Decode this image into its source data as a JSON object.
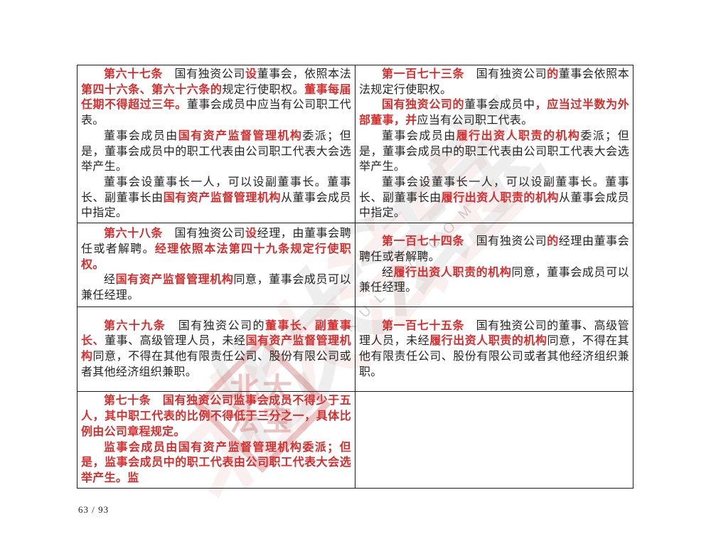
{
  "page": {
    "number_label": "63 / 93"
  },
  "colors": {
    "emphasis_red": "#d92c2c",
    "text_black": "#242424",
    "border": "#1c1c1c",
    "watermark_gray": "#8f8f8f",
    "watermark_pink": "#d07878"
  },
  "watermark": {
    "brand_cursive": "北大法宝",
    "brand_url": "PKULAW.COM",
    "seal_line1": "北大",
    "seal_line2": "法宝"
  },
  "table": {
    "rows": [
      {
        "cells": [
          {
            "paragraphs": [
              [
                {
                  "t": "第六十七条",
                  "red": true
                },
                {
                  "t": "　国有独资公司",
                  "red": false
                },
                {
                  "t": "设",
                  "red": true
                },
                {
                  "t": "董事会，依照本法",
                  "red": false
                },
                {
                  "t": "第四十六条、第六十六条的",
                  "red": true
                },
                {
                  "t": "规定行使职权。",
                  "red": false
                },
                {
                  "t": "董事每届任期不得超过三年。",
                  "red": true
                },
                {
                  "t": "董事会成员中应当有公司职工代表。",
                  "red": false
                }
              ],
              [
                {
                  "t": "董事会成员由",
                  "red": false
                },
                {
                  "t": "国有资产监督管理机构",
                  "red": true
                },
                {
                  "t": "委派；但是，董事会成员中的职工代表由公司职工代表大会选举产生。",
                  "red": false
                }
              ],
              [
                {
                  "t": "董事会设董事长一人，可以设副董事长。董事长、副董事长由",
                  "red": false
                },
                {
                  "t": "国有资产监督管理机构",
                  "red": true
                },
                {
                  "t": "从董事会成员中指定。",
                  "red": false
                }
              ]
            ]
          },
          {
            "paragraphs": [
              [
                {
                  "t": "第一百七十三条",
                  "red": true
                },
                {
                  "t": "　国有独资公司",
                  "red": false
                },
                {
                  "t": "的",
                  "red": true
                },
                {
                  "t": "董事会依照本法规定行使职权。",
                  "red": false
                }
              ],
              [
                {
                  "t": "国有独资公司的",
                  "red": true
                },
                {
                  "t": "董事会成员中",
                  "red": false
                },
                {
                  "t": "，应当过半数为外部董事，并",
                  "red": true
                },
                {
                  "t": "应当有公司职工代表。",
                  "red": false
                }
              ],
              [
                {
                  "t": "董事会成员由",
                  "red": false
                },
                {
                  "t": "履行出资人职责的机构",
                  "red": true
                },
                {
                  "t": "委派；但是，董事会成员中的职工代表由公司职工代表大会选举产生。",
                  "red": false
                }
              ],
              [
                {
                  "t": "董事会设董事长一人，可以设副董事长。董事长、副董事长由",
                  "red": false
                },
                {
                  "t": "履行出资人职责的机构",
                  "red": true
                },
                {
                  "t": "从董事会成员中指定。",
                  "red": false
                }
              ]
            ]
          }
        ]
      },
      {
        "cells": [
          {
            "paragraphs": [
              [
                {
                  "t": "第六十八条",
                  "red": true
                },
                {
                  "t": "　国有独资公司",
                  "red": false
                },
                {
                  "t": "设",
                  "red": true
                },
                {
                  "t": "经理，由董事会聘任或者解聘。",
                  "red": false
                },
                {
                  "t": "经理依照本法第四十九条规定行使职权。",
                  "red": true
                }
              ],
              [
                {
                  "t": "经",
                  "red": false
                },
                {
                  "t": "国有资产监督管理机构",
                  "red": true
                },
                {
                  "t": "同意，董事会成员可以兼任经理。",
                  "red": false
                }
              ]
            ]
          },
          {
            "paragraphs": [
              [
                {
                  "t": "第一百七十四条",
                  "red": true
                },
                {
                  "t": "　国有独资公司",
                  "red": false
                },
                {
                  "t": "的",
                  "red": true
                },
                {
                  "t": "经理由董事会聘任或者解聘。",
                  "red": false
                }
              ],
              [
                {
                  "t": "经",
                  "red": false
                },
                {
                  "t": "履行出资人职责的机构",
                  "red": true
                },
                {
                  "t": "同意，董事会成员可以兼任经理。",
                  "red": false
                }
              ]
            ]
          }
        ]
      },
      {
        "cells": [
          {
            "paragraphs": [
              [
                {
                  "t": "第六十九条",
                  "red": true
                },
                {
                  "t": "　国有独资公司的",
                  "red": false
                },
                {
                  "t": "董事长、副董事长、",
                  "red": true
                },
                {
                  "t": "董事、高级管理人员，未经",
                  "red": false
                },
                {
                  "t": "国有资产监督管理机构",
                  "red": true
                },
                {
                  "t": "同意，不得在其他有限责任公司、股份有限公司或者其他经济组织兼职。",
                  "red": false
                }
              ]
            ]
          },
          {
            "paragraphs": [
              [
                {
                  "t": "第一百七十五条",
                  "red": true
                },
                {
                  "t": "　国有独资公司的董事、高级管理人员，未经",
                  "red": false
                },
                {
                  "t": "履行出资人职责的机构",
                  "red": true
                },
                {
                  "t": "同意，不得在其他有限责任公司、股份有限公司或者其他经济组织兼职。",
                  "red": false
                }
              ]
            ]
          }
        ]
      },
      {
        "cells": [
          {
            "paragraphs": [
              [
                {
                  "t": "第七十条　国有独资公司监事会成员不得少于五人，其中职工代表的比例不得低于三分之一，具体比例由公司章程规定。",
                  "red": true
                }
              ],
              [
                {
                  "t": "监事会成员由国有资产监督管理机构委派；但是，监事会成员中的职工代表由公司职工代表大会选举产生。监",
                  "red": true
                }
              ]
            ]
          },
          {
            "paragraphs": []
          }
        ]
      }
    ]
  }
}
